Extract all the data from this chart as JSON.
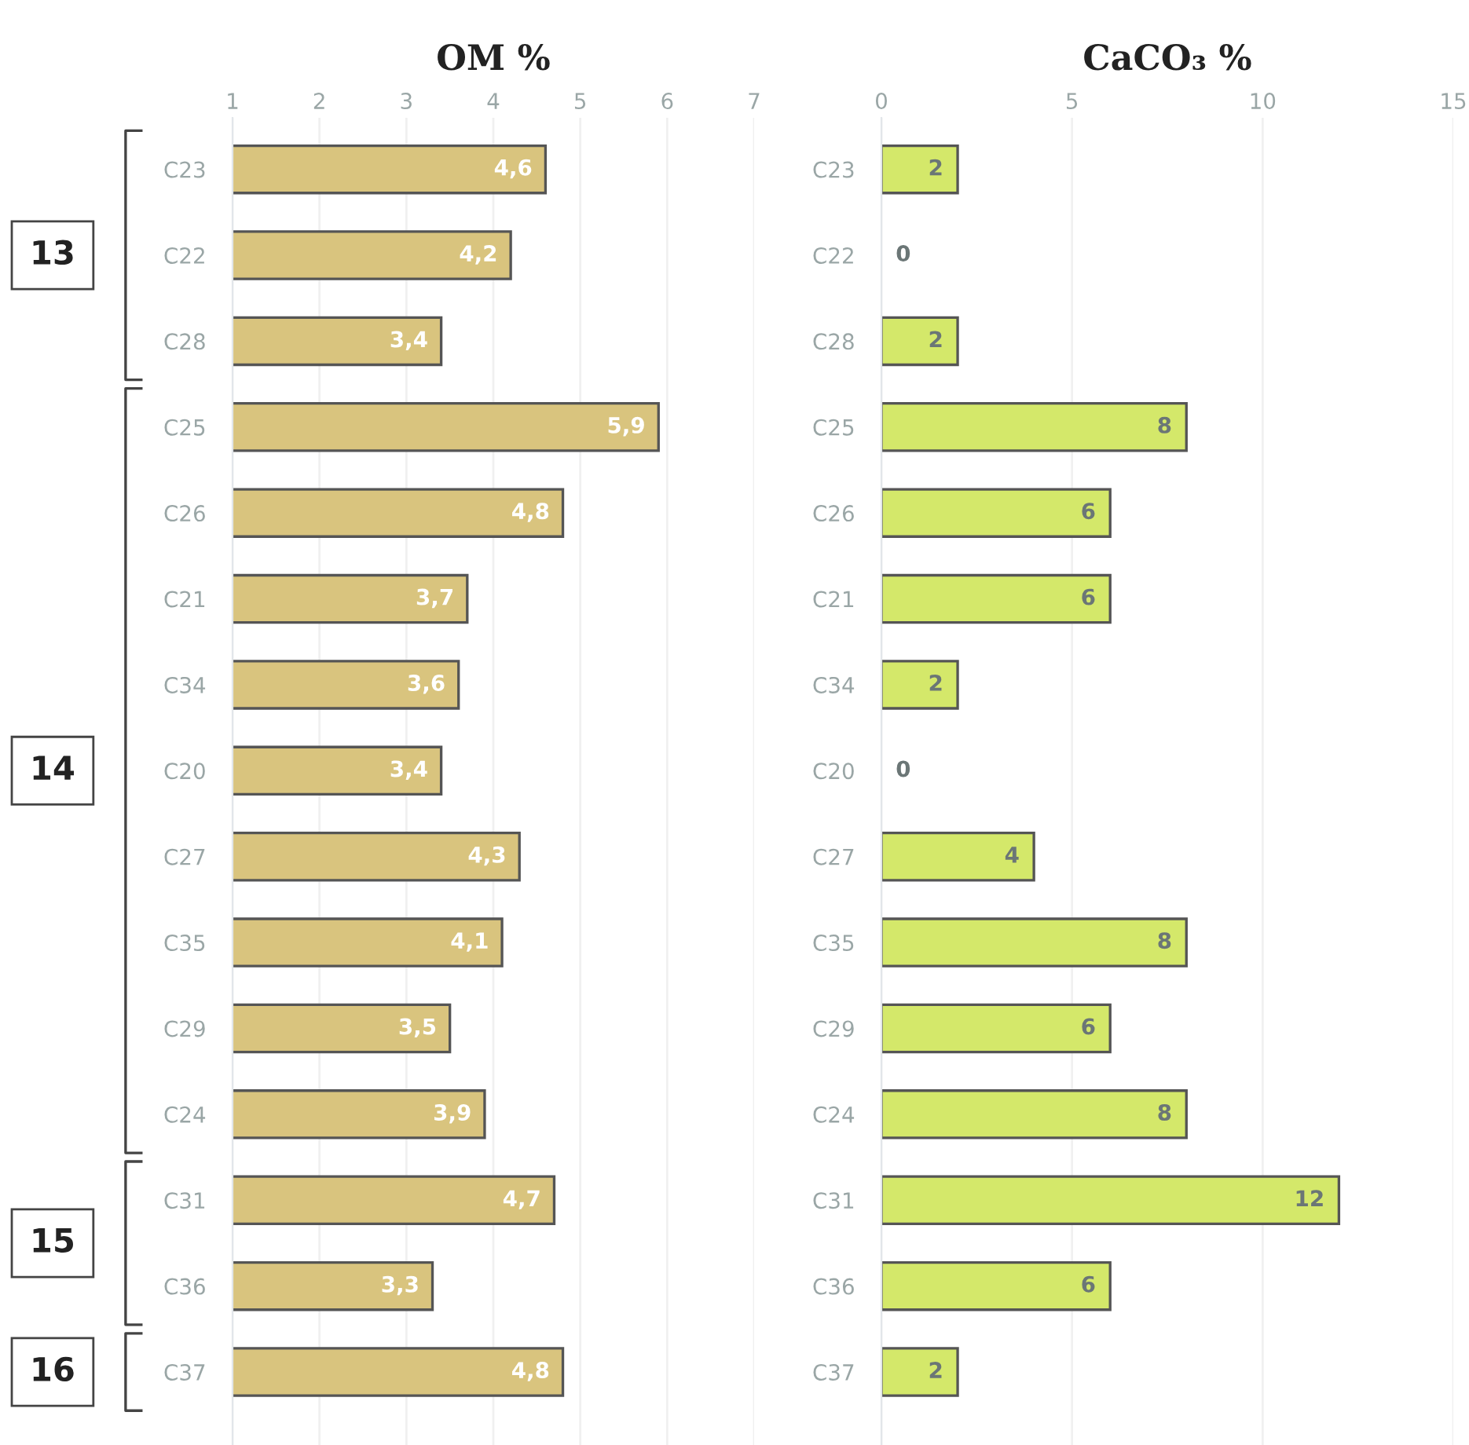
{
  "chart_data": [
    {
      "type": "bar",
      "orientation": "horizontal",
      "title": "OM %",
      "categories": [
        "C23",
        "C22",
        "C28",
        "C25",
        "C26",
        "C21",
        "C34",
        "C20",
        "C27",
        "C35",
        "C29",
        "C24",
        "C31",
        "C36",
        "C37"
      ],
      "values": [
        4.6,
        4.2,
        3.4,
        5.9,
        4.8,
        3.7,
        3.6,
        3.4,
        4.3,
        4.1,
        3.5,
        3.9,
        4.7,
        3.3,
        4.8
      ],
      "value_labels": [
        "4,6",
        "4,2",
        "3,4",
        "5,9",
        "4,8",
        "3,7",
        "3,6",
        "3,4",
        "4,3",
        "4,1",
        "3,5",
        "3,9",
        "4,7",
        "3,3",
        "4,8"
      ],
      "color": "#d9c47e",
      "xlim": [
        1,
        7
      ],
      "xticks": [
        1,
        2,
        3,
        4,
        5,
        6,
        7
      ],
      "grid": "x",
      "annotations": [
        "13",
        "14",
        "15",
        "16"
      ]
    },
    {
      "type": "bar",
      "orientation": "horizontal",
      "title": "CaCO₃ %",
      "categories": [
        "C23",
        "C22",
        "C28",
        "C25",
        "C26",
        "C21",
        "C34",
        "C20",
        "C27",
        "C35",
        "C29",
        "C24",
        "C31",
        "C36",
        "C37"
      ],
      "values": [
        2,
        0,
        2,
        8,
        6,
        6,
        2,
        0,
        4,
        8,
        6,
        8,
        12,
        6,
        2
      ],
      "color": "#d4e86a",
      "xlim": [
        0,
        15
      ],
      "xticks": [
        0,
        5,
        10,
        15
      ],
      "grid": "x",
      "data_labels": true
    }
  ]
}
